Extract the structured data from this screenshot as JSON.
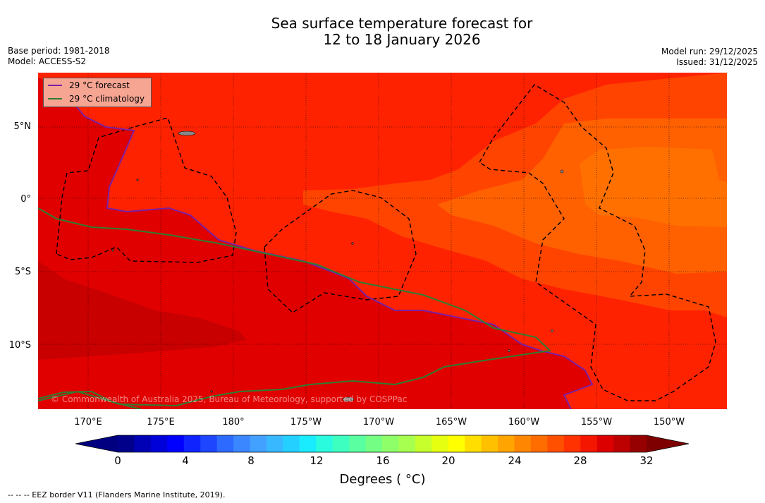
{
  "title": {
    "line1": "Sea surface temperature forecast for",
    "line2": "12 to 18 January 2026"
  },
  "meta_left": {
    "base_period": "Base period: 1981-2018",
    "model": "Model: ACCESS-S2"
  },
  "meta_right": {
    "model_run": "Model run: 29/12/2025",
    "issued": "Issued: 31/12/2025"
  },
  "legend": {
    "forecast": {
      "label": "29 °C  forecast",
      "color": "#7b1fa2"
    },
    "climatology": {
      "label": "29 °C  climatology",
      "color": "#2e7d32"
    }
  },
  "map": {
    "lat_labels": [
      "5°N",
      "0°",
      "5°S",
      "10°S"
    ],
    "lon_labels": [
      "170°E",
      "175°E",
      "180°",
      "175°W",
      "170°W",
      "165°W",
      "160°W",
      "155°W",
      "150°W"
    ],
    "copyright": "© Commonwealth of Australia 2025, Bureau of Meteorology, supported by COSPPac"
  },
  "colorbar": {
    "tick_labels": [
      "0",
      "4",
      "8",
      "12",
      "16",
      "20",
      "24",
      "28",
      "32"
    ],
    "title": "Degrees ( °C)",
    "colors": [
      "#00008b",
      "#0000b4",
      "#0000d8",
      "#0000ff",
      "#0f23ff",
      "#1e46ff",
      "#2d6aff",
      "#3a87ff",
      "#42a0ff",
      "#38b8ff",
      "#24d0ff",
      "#1aecff",
      "#2afade",
      "#3dffc0",
      "#59ffa0",
      "#74ff84",
      "#8eff68",
      "#a7ff4f",
      "#c6ff2c",
      "#e6ff10",
      "#ffff00",
      "#ffde00",
      "#ffc000",
      "#ffa400",
      "#ff8600",
      "#ff6c00",
      "#ff5000",
      "#ff3200",
      "#f51600",
      "#dc0000",
      "#bd0000",
      "#960000"
    ]
  },
  "footnote": "--  --  -- EEZ border V11 (Flanders Marine Institute, 2019)."
}
